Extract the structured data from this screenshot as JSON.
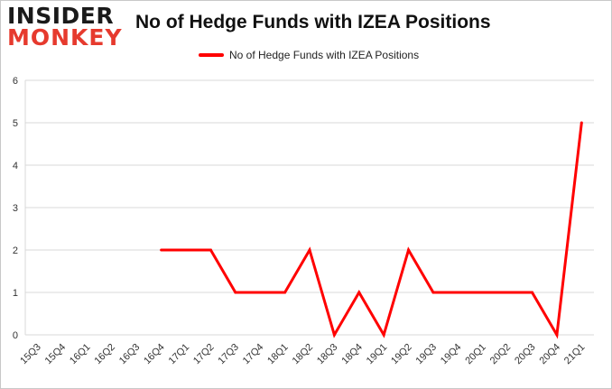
{
  "logo": {
    "line1": "INSIDER",
    "line2": "MONKEY"
  },
  "chart_data": {
    "type": "line",
    "title": "No of Hedge Funds with IZEA Positions",
    "xlabel": "",
    "ylabel": "",
    "categories": [
      "15Q3",
      "15Q4",
      "16Q1",
      "16Q2",
      "16Q3",
      "16Q4",
      "17Q1",
      "17Q2",
      "17Q3",
      "17Q4",
      "18Q1",
      "18Q2",
      "18Q3",
      "18Q4",
      "19Q1",
      "19Q2",
      "19Q3",
      "19Q4",
      "20Q1",
      "20Q2",
      "20Q3",
      "20Q4",
      "21Q1"
    ],
    "series": [
      {
        "name": "No of Hedge Funds with IZEA Positions",
        "color": "#ff0000",
        "values": [
          null,
          null,
          null,
          null,
          null,
          2,
          2,
          2,
          1,
          1,
          1,
          2,
          0,
          1,
          0,
          2,
          1,
          1,
          1,
          1,
          1,
          0,
          5
        ]
      }
    ],
    "ylim": [
      0,
      6
    ],
    "yticks": [
      0,
      1,
      2,
      3,
      4,
      5,
      6
    ],
    "grid": "horizontal",
    "legend_position": "top-center"
  }
}
